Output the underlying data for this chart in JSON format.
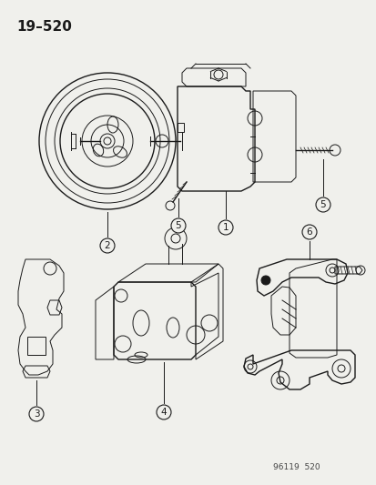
{
  "bg_color": "#f0f0ec",
  "title_text": "19–520",
  "title_fontsize": 11,
  "title_fontweight": "bold",
  "watermark": "96119  520",
  "watermark_fontsize": 6.5,
  "line_color": "#1a1a1a",
  "label_fontsize": 7.5
}
